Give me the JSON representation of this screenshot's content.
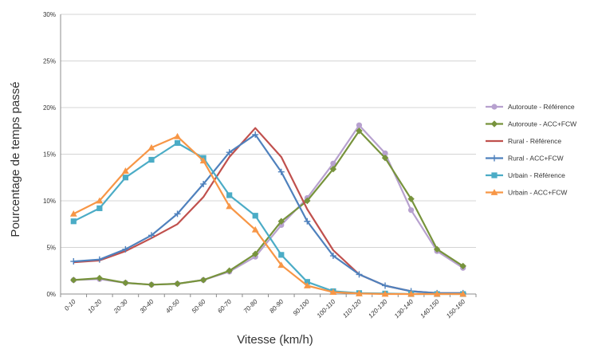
{
  "chart_data": {
    "type": "line",
    "title": "",
    "xlabel": "Vitesse (km/h)",
    "ylabel": "Pourcentage de temps passé",
    "ylim": [
      0,
      30
    ],
    "y_ticks": [
      "0%",
      "5%",
      "10%",
      "15%",
      "20%",
      "25%",
      "30%"
    ],
    "grid": "horizontal",
    "legend_position": "right",
    "categories": [
      "0-10",
      "10-20",
      "20-30",
      "30-40",
      "40-50",
      "50-60",
      "60-70",
      "70-80",
      "80-90",
      "90-100",
      "100-110",
      "110-120",
      "120-130",
      "130-140",
      "140-150",
      "150-160"
    ],
    "series": [
      {
        "name": "Autoroute - Référence",
        "color": "#B7A1CF",
        "marker": "circle",
        "values": [
          1.5,
          1.6,
          1.2,
          1.0,
          1.1,
          1.5,
          2.4,
          4.0,
          7.4,
          10.3,
          14.0,
          18.1,
          15.1,
          9.0,
          4.6,
          2.8
        ]
      },
      {
        "name": "Autoroute - ACC+FCW",
        "color": "#77933C",
        "marker": "diamond",
        "values": [
          1.5,
          1.7,
          1.2,
          1.0,
          1.1,
          1.5,
          2.5,
          4.3,
          7.8,
          10.0,
          13.4,
          17.5,
          14.6,
          10.2,
          4.8,
          3.0
        ]
      },
      {
        "name": "Rural - Référence",
        "color": "#C0504D",
        "marker": "none",
        "values": [
          3.4,
          3.6,
          4.6,
          6.0,
          7.5,
          10.4,
          14.7,
          17.8,
          14.7,
          9.1,
          4.7,
          2.1,
          0.9,
          0.3,
          0.1,
          0.1
        ]
      },
      {
        "name": "Rural - ACC+FCW",
        "color": "#4F81BD",
        "marker": "plus",
        "values": [
          3.5,
          3.7,
          4.8,
          6.3,
          8.6,
          11.8,
          15.2,
          17.1,
          13.1,
          7.8,
          4.1,
          2.1,
          0.9,
          0.3,
          0.1,
          0.1
        ]
      },
      {
        "name": "Urbain - Référence",
        "color": "#4BACC6",
        "marker": "square",
        "values": [
          7.8,
          9.2,
          12.5,
          14.4,
          16.2,
          14.6,
          10.6,
          8.4,
          4.2,
          1.3,
          0.3,
          0.1,
          0.05,
          0.0,
          0.0,
          0.0
        ]
      },
      {
        "name": "Urbain - ACC+FCW",
        "color": "#F79646",
        "marker": "triangle",
        "values": [
          8.6,
          10.0,
          13.2,
          15.7,
          16.9,
          14.3,
          9.4,
          6.9,
          3.1,
          0.9,
          0.2,
          0.05,
          0.0,
          0.0,
          0.0,
          0.0
        ]
      }
    ]
  }
}
